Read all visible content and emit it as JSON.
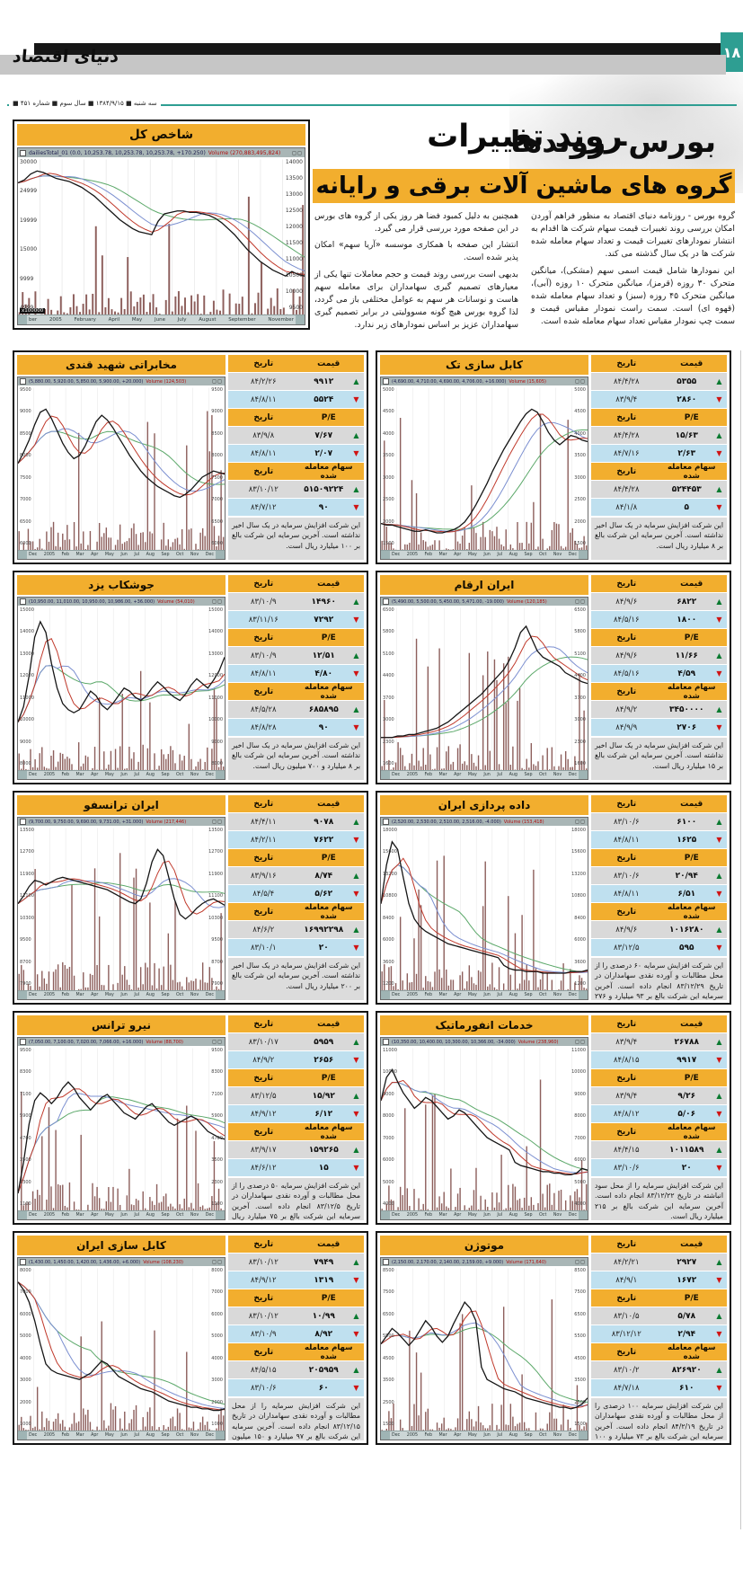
{
  "page": {
    "number": "۱۸",
    "newspaper_logo": "دنیای اقتصاد",
    "section_title": "بورس- روندها",
    "date_line": "■ سه شنبه ■ ۱۳۸۴/۹/۱۵ ■ سال سوم ■ شماره ۴۵۱"
  },
  "article": {
    "title_line1": "روند تغییرات",
    "title_line2": "گروه های ماشین آلات برقی و رایانه",
    "col1": [
      "گروه بورس - روزنامه دنیای اقتصاد به منظور فراهم آوردن امکان بررسی روند تغییرات قیمت سهام شرکت ها اقدام به انتشار نمودارهای تغییرات قیمت و تعداد سهام معامله شده شرکت ها در یک سال گذشته می کند.",
      "این نمودارها شامل قیمت اسمی سهم (مشکی)، میانگین متحرک ۳۰ روزه (قرمز)، میانگین متحرک ۱۰ روزه (آبی)، میانگین متحرک ۴۵ روزه (سبز) و تعداد سهام معامله شده (قهوه ای) است. سمت راست نمودار مقیاس قیمت و سمت چپ نمودار مقیاس تعداد سهام معامله شده است."
    ],
    "col2": [
      "همچنین به دلیل کمبود فضا هر روز یکی از گروه های بورس در این صفحه مورد بررسی قرار می گیرد.",
      "انتشار این صفحه با همکاری موسسه «آریا سهم» امکان پذیر شده است.",
      "بدیهی است بررسی روند قیمت و حجم معاملات تنها یکی از معیارهای تصمیم گیری سهامداران برای معامله سهم هاست و نوسانات هر سهم به عوامل مختلفی باز می گردد، لذا گروه بورس هیچ گونه مسوولیتی در برابر تصمیم گیری سهامداران عزیز بر اساس نمودارهای زیر ندارد."
    ]
  },
  "table_labels": {
    "date": "تاریخ",
    "price": "قیمت",
    "pe": "P/E",
    "shares": "سهام معامله شده"
  },
  "icons": {
    "up": "▲",
    "down": "▼"
  },
  "months": [
    "Dec",
    "2005",
    "Feb",
    "Mar",
    "Apr",
    "May",
    "Jun",
    "Jul",
    "Aug",
    "Sep",
    "Oct",
    "Nov",
    "Dec"
  ],
  "main_chart": {
    "title": "شاخص کل",
    "ohlc": "dailiesTotal_01 (0.0, 10,253.78, 10,253.78, 10,253.78, +170.250)",
    "vol": "Volume (270,883,495,824)",
    "scale_note": "x100000",
    "left_ticks": [
      "30000",
      "24999",
      "19999",
      "15000",
      "9999",
      "4999"
    ],
    "right_ticks": [
      "14000",
      "13500",
      "13000",
      "12500",
      "12000",
      "11500",
      "11000",
      "10500",
      "10000",
      "9500"
    ],
    "x_labels": [
      "ber",
      "2005",
      "February",
      "April",
      "May",
      "June",
      "July",
      "August",
      "September",
      "November"
    ],
    "line": [
      88,
      90,
      94,
      96,
      95,
      93,
      91,
      90,
      89,
      87,
      85,
      82,
      79,
      75,
      71,
      67,
      63,
      60,
      57,
      55,
      54,
      53,
      62,
      67,
      68,
      69,
      69,
      68,
      68,
      67,
      66,
      64,
      61,
      57,
      53,
      48,
      43,
      39,
      35,
      32,
      29,
      27,
      25,
      28,
      26,
      25
    ]
  },
  "panels": [
    {
      "name": "مخابراتی شهید قندی",
      "ohlc": "(5,880.00, 5,920.00, 5,850.00, 5,900.00, +20.000)",
      "vol": "Volume (124,503)",
      "price_up_date": "۸۴/۲/۲۶",
      "price_up": "۹۹۱۲",
      "price_down_date": "۸۴/۸/۱۱",
      "price_down": "۵۵۲۴",
      "pe_up_date": "۸۳/۹/۸",
      "pe_up": "۷/۶۷",
      "pe_down_date": "۸۴/۸/۱۱",
      "pe_down": "۲/۰۷",
      "sh_up_date": "۸۳/۱۰/۱۲",
      "sh_up": "۵۱۵۰۹۲۲۴",
      "sh_down_date": "۸۴/۷/۱۲",
      "sh_down": "۹۰",
      "note": "این شرکت افزایش سرمایه در یک سال اخیر نداشته است. آخرین سرمایه این شرکت بالغ بر ۱۰۰ میلیارد ریال است.",
      "yticks": [
        "9500",
        "9000",
        "8500",
        "8000",
        "7500",
        "7000",
        "6500",
        "6000"
      ],
      "line": [
        55,
        62,
        70,
        80,
        88,
        90,
        84,
        76,
        68,
        62,
        58,
        60,
        66,
        74,
        82,
        86,
        83,
        78,
        72,
        66,
        60,
        55,
        50,
        46,
        43,
        40,
        38,
        36,
        34,
        33,
        35,
        38,
        42,
        46,
        48,
        50,
        49,
        48
      ]
    },
    {
      "name": "کابل سازی تک",
      "ohlc": "(4,690.00, 4,710.00, 4,690.00, 4,706.00, +16.000)",
      "vol": "Volume (15,605)",
      "price_up_date": "۸۴/۴/۲۸",
      "price_up": "۵۳۵۵",
      "price_down_date": "۸۳/۹/۴",
      "price_down": "۲۸۶۰",
      "pe_up_date": "۸۴/۴/۲۸",
      "pe_up": "۱۵/۶۳",
      "pe_down_date": "۸۴/۷/۱۶",
      "pe_down": "۲/۶۳",
      "sh_up_date": "۸۴/۴/۲۸",
      "sh_up": "۵۲۴۴۵۳",
      "sh_down_date": "۸۴/۱/۸",
      "sh_down": "۵",
      "note": "این شرکت افزایش سرمایه در یک سال اخیر نداشته است. آخرین سرمایه این شرکت بالغ بر ۸ میلیارد ریال است.",
      "yticks": [
        "5000",
        "4500",
        "4000",
        "3500",
        "3000",
        "2500",
        "2000",
        "1500"
      ],
      "line": [
        16,
        15,
        15,
        14,
        13,
        12,
        11,
        11,
        12,
        11,
        10,
        10,
        11,
        12,
        14,
        17,
        22,
        28,
        35,
        42,
        50,
        57,
        64,
        70,
        76,
        82,
        87,
        90,
        88,
        82,
        75,
        70,
        67,
        70,
        73,
        72,
        70,
        69
      ]
    },
    {
      "name": "جوشکاب یزد",
      "ohlc": "(10,950.00, 11,010.00, 10,950.00, 10,986.00, +36.000)",
      "vol": "Volume (54,010)",
      "price_up_date": "۸۳/۱۰/۹",
      "price_up": "۱۴۹۶۰",
      "price_down_date": "۸۳/۱۱/۱۶",
      "price_down": "۷۲۹۲",
      "pe_up_date": "۸۳/۱۰/۹",
      "pe_up": "۱۲/۵۱",
      "pe_down_date": "۸۴/۸/۱۱",
      "pe_down": "۴/۸۰",
      "sh_up_date": "۸۴/۵/۲۸",
      "sh_up": "۶۸۵۸۹۵",
      "sh_down_date": "۸۴/۸/۲۸",
      "sh_down": "۹۰",
      "note": "این شرکت افزایش سرمایه در یک سال اخیر نداشته است. آخرین سرمایه این شرکت بالغ بر ۸ میلیارد و ۷۰۰ میلیون ریال است.",
      "yticks": [
        "15000",
        "14000",
        "13000",
        "12000",
        "11000",
        "10000",
        "9000",
        "8000"
      ],
      "line": [
        30,
        40,
        60,
        85,
        95,
        88,
        68,
        52,
        42,
        38,
        36,
        38,
        44,
        50,
        47,
        41,
        38,
        42,
        47,
        52,
        50,
        46,
        44,
        47,
        52,
        56,
        53,
        49,
        46,
        44,
        48,
        54,
        58,
        55,
        52,
        57,
        63,
        72
      ]
    },
    {
      "name": "ایران ارقام",
      "ohlc": "(5,490.00, 5,500.00, 5,450.00, 5,471.00, -19.000)",
      "vol": "Volume (120,185)",
      "price_up_date": "۸۴/۹/۶",
      "price_up": "۶۸۲۲",
      "price_down_date": "۸۴/۵/۱۶",
      "price_down": "۱۸۰۰",
      "pe_up_date": "۸۴/۹/۶",
      "pe_up": "۱۱/۶۶",
      "pe_down_date": "۸۴/۵/۱۶",
      "pe_down": "۴/۵۹",
      "sh_up_date": "۸۴/۹/۲",
      "sh_up": "۳۴۵۰۰۰۰",
      "sh_down_date": "۸۴/۹/۹",
      "sh_down": "۲۷۰۶",
      "note": "این شرکت افزایش سرمایه در یک سال اخیر نداشته است. آخرین سرمایه این شرکت بالغ بر ۱۵ میلیارد ریال است.",
      "yticks": [
        "6500",
        "5800",
        "5100",
        "4400",
        "3700",
        "3000",
        "2300",
        "1600"
      ],
      "line": [
        20,
        20,
        20,
        21,
        21,
        22,
        22,
        23,
        24,
        25,
        26,
        28,
        30,
        33,
        36,
        39,
        42,
        45,
        48,
        52,
        56,
        60,
        64,
        70,
        78,
        88,
        92,
        84,
        76,
        72,
        70,
        68,
        66,
        62,
        60,
        58,
        56,
        55
      ]
    },
    {
      "name": "ایران ترانسفو",
      "ohlc": "(9,700.00, 9,750.00, 9,690.00, 9,731.00, +31.000)",
      "vol": "Volume (217,446)",
      "price_up_date": "۸۴/۴/۱۱",
      "price_up": "۹۰۷۸",
      "price_down_date": "۸۴/۲/۱۱",
      "price_down": "۷۶۲۲",
      "pe_up_date": "۸۳/۹/۱۶",
      "pe_up": "۸/۷۴",
      "pe_down_date": "۸۴/۵/۴",
      "pe_down": "۵/۶۲",
      "sh_up_date": "۸۴/۶/۲",
      "sh_up": "۱۶۹۹۲۲۹۸",
      "sh_down_date": "۸۳/۱۰/۱",
      "sh_down": "۲۰",
      "note": "این شرکت افزایش سرمایه در یک سال اخیر نداشته است. آخرین سرمایه این شرکت بالغ بر ۲۰۰ میلیارد ریال است.",
      "yticks": [
        "13500",
        "12700",
        "11900",
        "11100",
        "10300",
        "9500",
        "8700",
        "7900"
      ],
      "line": [
        55,
        60,
        66,
        70,
        69,
        67,
        69,
        71,
        72,
        71,
        70,
        69,
        68,
        67,
        66,
        65,
        64,
        62,
        60,
        58,
        56,
        55,
        58,
        68,
        82,
        90,
        86,
        72,
        58,
        48,
        45,
        48,
        52,
        55,
        57,
        58,
        56,
        54
      ]
    },
    {
      "name": "داده پردازی ایران",
      "ohlc": "(2,520.00, 2,530.00, 2,510.00, 2,516.00, -4.000)",
      "vol": "Volume (153,418)",
      "price_up_date": "۸۳/۱۰/۶",
      "price_up": "۶۱۰۰",
      "price_down_date": "۸۴/۸/۱۱",
      "price_down": "۱۶۲۵",
      "pe_up_date": "۸۳/۱۰/۶",
      "pe_up": "۲۰/۹۴",
      "pe_down_date": "۸۴/۸/۱۱",
      "pe_down": "۶/۵۱",
      "sh_up_date": "۸۴/۹/۶",
      "sh_up": "۱۰۱۶۲۸۰",
      "sh_down_date": "۸۳/۱۲/۵",
      "sh_down": "۵۹۵",
      "note": "این شرکت افزایش سرمایه ۶۰ درصدی را از محل مطالبات و آورده نقدی سهامداران در تاریخ ۸۳/۱۲/۲۹ انجام داده است. آخرین سرمایه این شرکت بالغ بر ۹۳ میلیارد و ۲۷۶ میلیون ریال است.",
      "yticks": [
        "18000",
        "15600",
        "13200",
        "10800",
        "8400",
        "6000",
        "3600",
        "1200"
      ],
      "line": [
        55,
        80,
        95,
        90,
        72,
        55,
        45,
        40,
        37,
        35,
        33,
        31,
        29,
        28,
        27,
        26,
        25,
        24,
        23,
        22,
        21,
        20,
        15,
        13,
        12,
        12,
        11,
        11,
        11,
        10,
        10,
        10,
        10,
        10,
        11,
        11,
        11,
        12
      ]
    },
    {
      "name": "نیرو ترانس",
      "ohlc": "(7,050.00, 7,100.00, 7,020.00, 7,066.00, +16.000)",
      "vol": "Volume (88,700)",
      "price_up_date": "۸۳/۱۰/۱۷",
      "price_up": "۵۹۵۹",
      "price_down_date": "۸۴/۹/۲",
      "price_down": "۲۶۵۶",
      "pe_up_date": "۸۳/۱۲/۵",
      "pe_up": "۱۵/۹۲",
      "pe_down_date": "۸۴/۹/۱۲",
      "pe_down": "۶/۱۲",
      "sh_up_date": "۸۳/۹/۱۷",
      "sh_up": "۱۵۹۲۶۵",
      "sh_down_date": "۸۴/۶/۱۲",
      "sh_down": "۱۵",
      "note": "این شرکت افزایش سرمایه ۵۰ درصدی را از محل مطالبات و آورده نقدی سهامداران در تاریخ ۸۳/۱۲/۵ انجام داده است. آخرین سرمایه این شرکت بالغ بر ۷۵ میلیارد ریال است.",
      "yticks": [
        "9500",
        "8300",
        "7100",
        "5900",
        "4700",
        "3500",
        "2300",
        "1100"
      ],
      "line": [
        10,
        30,
        55,
        70,
        75,
        72,
        68,
        72,
        78,
        82,
        78,
        72,
        68,
        64,
        68,
        72,
        74,
        70,
        66,
        62,
        60,
        58,
        62,
        66,
        68,
        64,
        60,
        56,
        54,
        56,
        58,
        60,
        58,
        54,
        50,
        48,
        46,
        45
      ]
    },
    {
      "name": "خدمات انفورماتیک",
      "ohlc": "(10,350.00, 10,400.00, 10,300.00, 10,366.00, -34.000)",
      "vol": "Volume (238,960)",
      "price_up_date": "۸۳/۹/۴",
      "price_up": "۲۶۷۸۸",
      "price_down_date": "۸۴/۸/۱۵",
      "price_down": "۹۹۱۷",
      "pe_up_date": "۸۳/۹/۴",
      "pe_up": "۹/۲۶",
      "pe_down_date": "۸۴/۸/۱۲",
      "pe_down": "۵/۰۶",
      "sh_up_date": "۸۴/۴/۱۵",
      "sh_up": "۱۰۱۱۵۸۹",
      "sh_down_date": "۸۳/۱۰/۶",
      "sh_down": "۲۰",
      "note": "این شرکت افزایش سرمایه را از محل سود انباشته در تاریخ ۸۳/۱۲/۲۲ انجام داده است. آخرین سرمایه این شرکت بالغ بر ۲۱۵ میلیارد ریال است.",
      "yticks": [
        "11000",
        "10000",
        "9000",
        "8000",
        "7000",
        "6000",
        "5000",
        "4000"
      ],
      "line": [
        70,
        85,
        90,
        82,
        75,
        70,
        65,
        68,
        72,
        70,
        66,
        62,
        58,
        60,
        64,
        62,
        58,
        54,
        50,
        46,
        44,
        42,
        40,
        38,
        30,
        28,
        27,
        26,
        25,
        24,
        24,
        23,
        23,
        22,
        22,
        23,
        26,
        25
      ]
    },
    {
      "name": "کابل سازی ایران",
      "ohlc": "(1,430.00, 1,450.00, 1,420.00, 1,436.00, +6.000)",
      "vol": "Volume (108,230)",
      "price_up_date": "۸۳/۱۰/۱۲",
      "price_up": "۷۹۴۹",
      "price_down_date": "۸۴/۹/۱۲",
      "price_down": "۱۳۱۹",
      "pe_up_date": "۸۳/۱۰/۱۲",
      "pe_up": "۱۰/۹۹",
      "pe_down_date": "۸۳/۱۰/۹",
      "pe_down": "۸/۹۲",
      "sh_up_date": "۸۴/۵/۱۵",
      "sh_up": "۲۰۵۹۵۹",
      "sh_down_date": "۸۳/۱۰/۶",
      "sh_down": "۶۰",
      "note": "این شرکت افزایش سرمایه را از محل مطالبات و آورده نقدی سهامداران در تاریخ ۸۳/۱۲/۱۵ انجام داده است. آخرین سرمایه این شرکت بالغ بر ۹۷ میلیارد و ۱۵۰ میلیون ریال است.",
      "yticks": [
        "8000",
        "7000",
        "6000",
        "5000",
        "4000",
        "3000",
        "2000",
        "1000"
      ],
      "line": [
        95,
        90,
        82,
        70,
        55,
        42,
        38,
        36,
        35,
        34,
        33,
        32,
        34,
        36,
        40,
        44,
        42,
        38,
        34,
        32,
        30,
        28,
        26,
        25,
        24,
        22,
        20,
        18,
        17,
        16,
        15,
        14,
        14,
        13,
        13,
        12,
        12,
        13
      ]
    },
    {
      "name": "موتوژن",
      "ohlc": "(2,150.00, 2,170.00, 2,140.00, 2,159.00, +9.000)",
      "vol": "Volume (171,640)",
      "price_up_date": "۸۴/۲/۲۱",
      "price_up": "۲۹۲۷",
      "price_down_date": "۸۴/۹/۱",
      "price_down": "۱۶۷۲",
      "pe_up_date": "۸۳/۱۰/۵",
      "pe_up": "۵/۷۸",
      "pe_down_date": "۸۳/۱۲/۱۲",
      "pe_down": "۲/۹۴",
      "sh_up_date": "۸۳/۱۰/۲",
      "sh_up": "۸۲۶۹۲۰",
      "sh_down_date": "۸۴/۷/۱۸",
      "sh_down": "۶۱۰",
      "note": "این شرکت افزایش سرمایه ۱۰۰ درصدی را از محل مطالبات و آورده نقدی سهامداران در تاریخ ۸۴/۲/۱۹ انجام داده است. آخرین سرمایه این شرکت بالغ بر ۷۳ میلیارد و ۱۰۰ میلیون ریال است.",
      "yticks": [
        "8500",
        "7500",
        "6500",
        "5500",
        "4500",
        "3500",
        "2500",
        "1500"
      ],
      "line": [
        55,
        60,
        65,
        62,
        58,
        54,
        58,
        64,
        70,
        66,
        60,
        56,
        60,
        68,
        75,
        82,
        78,
        70,
        40,
        32,
        30,
        28,
        26,
        25,
        24,
        22,
        20,
        19,
        18,
        17,
        16,
        15,
        14,
        14,
        13,
        14,
        16,
        20
      ]
    }
  ]
}
